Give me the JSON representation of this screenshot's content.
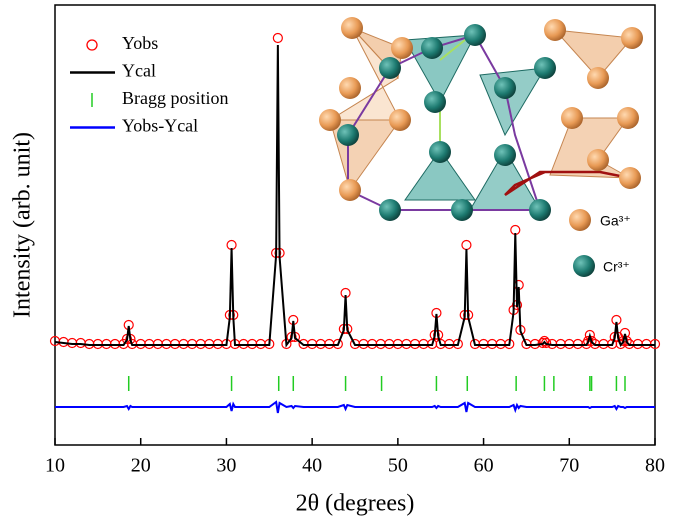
{
  "chart_data": {
    "type": "line",
    "xlabel": "2θ (degrees)",
    "ylabel": "Intensity (arb. unit)",
    "xlim": [
      10,
      80
    ],
    "xticks": [
      10,
      20,
      30,
      40,
      50,
      60,
      70,
      80
    ],
    "ylim": [
      -100,
      340
    ],
    "x": [
      10,
      11,
      12,
      13,
      14,
      15,
      16,
      17,
      18,
      18.4,
      18.6,
      18.8,
      19,
      20,
      21,
      22,
      23,
      24,
      25,
      26,
      27,
      28,
      29,
      30,
      30.4,
      30.6,
      30.8,
      31,
      32,
      33,
      34,
      35,
      35.8,
      36,
      36.2,
      37,
      37.6,
      37.8,
      38,
      39,
      40,
      41,
      42,
      43,
      43.7,
      43.9,
      44.1,
      45,
      46,
      47,
      48,
      49,
      50,
      51,
      52,
      53,
      54,
      54.3,
      54.5,
      54.7,
      55,
      56,
      57,
      57.8,
      58,
      58.2,
      59,
      60,
      61,
      62,
      63,
      63.5,
      63.7,
      63.9,
      64.1,
      64.3,
      65,
      66,
      66.9,
      67.1,
      67.3,
      68,
      69,
      70,
      71,
      72,
      72.2,
      72.4,
      72.6,
      73,
      74,
      75,
      75.3,
      75.5,
      75.7,
      76,
      76.3,
      76.5,
      76.7,
      77,
      78,
      79,
      80
    ],
    "series": [
      {
        "name": "Yobs",
        "color": "#ff0000",
        "style": "markers",
        "values": [
          4,
          3,
          2,
          2,
          1,
          1,
          1,
          1,
          1,
          6,
          20,
          6,
          1,
          1,
          1,
          1,
          1,
          1,
          1,
          1,
          1,
          1,
          1,
          1,
          30,
          100,
          30,
          1,
          1,
          1,
          1,
          1,
          92,
          307,
          92,
          1,
          8,
          25,
          8,
          1,
          1,
          1,
          1,
          1,
          16,
          52,
          16,
          1,
          1,
          1,
          1,
          1,
          1,
          1,
          1,
          1,
          1,
          10,
          32,
          10,
          1,
          1,
          1,
          30,
          100,
          30,
          1,
          1,
          1,
          1,
          1,
          35,
          115,
          40,
          60,
          15,
          1,
          1,
          2,
          4,
          2,
          1,
          1,
          1,
          1,
          1,
          4,
          10,
          4,
          1,
          1,
          1,
          8,
          25,
          8,
          1,
          4,
          12,
          4,
          1,
          1,
          1,
          1
        ]
      },
      {
        "name": "Ycal",
        "color": "#000000",
        "style": "line",
        "values": [
          3,
          2,
          1,
          1,
          0,
          0,
          0,
          0,
          0,
          5,
          19,
          5,
          0,
          0,
          0,
          0,
          0,
          0,
          0,
          0,
          0,
          0,
          0,
          0,
          28,
          97,
          28,
          0,
          0,
          0,
          0,
          0,
          90,
          300,
          88,
          0,
          7,
          24,
          7,
          0,
          0,
          0,
          0,
          0,
          15,
          50,
          15,
          0,
          0,
          0,
          0,
          0,
          0,
          0,
          0,
          0,
          0,
          9,
          31,
          9,
          0,
          0,
          0,
          28,
          96,
          28,
          0,
          0,
          0,
          0,
          0,
          33,
          112,
          38,
          58,
          14,
          0,
          0,
          1,
          3,
          1,
          0,
          0,
          0,
          0,
          0,
          3,
          9,
          3,
          0,
          0,
          0,
          7,
          23,
          7,
          0,
          3,
          11,
          3,
          0,
          0,
          0,
          0
        ]
      },
      {
        "name": "Bragg position",
        "color": "#22cc22",
        "style": "ticks",
        "x": [
          18.6,
          30.6,
          36.1,
          37.8,
          43.9,
          48.1,
          54.5,
          58.1,
          63.8,
          67.1,
          68.2,
          72.4,
          72.6,
          75.5,
          76.5
        ]
      },
      {
        "name": "Yobs-Ycal",
        "color": "#0000ff",
        "style": "line",
        "values": [
          -62,
          -62,
          -62,
          -62,
          -62,
          -62,
          -62,
          -62,
          -62,
          -61,
          -64,
          -61,
          -62,
          -62,
          -62,
          -62,
          -62,
          -62,
          -62,
          -62,
          -62,
          -62,
          -62,
          -62,
          -59,
          -66,
          -59,
          -62,
          -62,
          -62,
          -62,
          -62,
          -57,
          -68,
          -58,
          -62,
          -61,
          -63,
          -61,
          -62,
          -62,
          -62,
          -62,
          -62,
          -60,
          -64,
          -60,
          -62,
          -62,
          -62,
          -62,
          -62,
          -62,
          -62,
          -62,
          -62,
          -62,
          -61,
          -63,
          -61,
          -62,
          -62,
          -62,
          -58,
          -67,
          -58,
          -62,
          -62,
          -62,
          -62,
          -62,
          -60,
          -65,
          -60,
          -63,
          -61,
          -62,
          -62,
          -62,
          -62,
          -62,
          -62,
          -62,
          -62,
          -62,
          -62,
          -62,
          -63,
          -62,
          -62,
          -62,
          -62,
          -61,
          -64,
          -61,
          -62,
          -62,
          -63,
          -62,
          -62,
          -62,
          -62,
          -62
        ]
      }
    ],
    "annotations": [
      "Ga³⁺",
      "Cr³⁺"
    ]
  }
}
